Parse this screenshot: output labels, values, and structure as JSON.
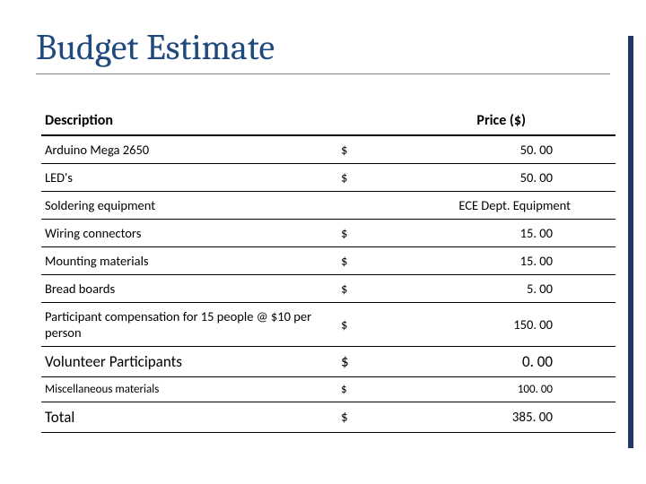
{
  "title": "Budget Estimate",
  "columns": {
    "description": "Description",
    "price": "Price ($)"
  },
  "rows": [
    {
      "desc": "Arduino Mega 2650",
      "currency": "$",
      "amount": "50. 00",
      "style": "norm"
    },
    {
      "desc": "LED's",
      "currency": "$",
      "amount": "50. 00",
      "style": "norm"
    },
    {
      "desc": "Soldering equipment",
      "special": "ECE Dept. Equipment",
      "style": "norm"
    },
    {
      "desc": "Wiring connectors",
      "currency": "$",
      "amount": "15. 00",
      "style": "norm"
    },
    {
      "desc": "Mounting materials",
      "currency": "$",
      "amount": "15. 00",
      "style": "norm"
    },
    {
      "desc": "Bread boards",
      "currency": "$",
      "amount": "5. 00",
      "style": "norm"
    },
    {
      "desc": "Participant compensation for 15 people @ $10 per person",
      "currency": "$",
      "amount": "150. 00",
      "style": "norm"
    },
    {
      "desc": "Volunteer Participants",
      "currency": "$",
      "amount": "0. 00",
      "style": "big"
    },
    {
      "desc": "Miscellaneous materials",
      "currency": "$",
      "amount": "100. 00",
      "style": "small"
    },
    {
      "desc": "Total",
      "currency": "$",
      "amount": "385. 00",
      "style": "total"
    }
  ],
  "colors": {
    "title_color": "#1f497d",
    "accent_bar": "#1f3864",
    "header_border": "#000000",
    "row_border": "#000000",
    "text": "#000000",
    "background": "#ffffff"
  }
}
